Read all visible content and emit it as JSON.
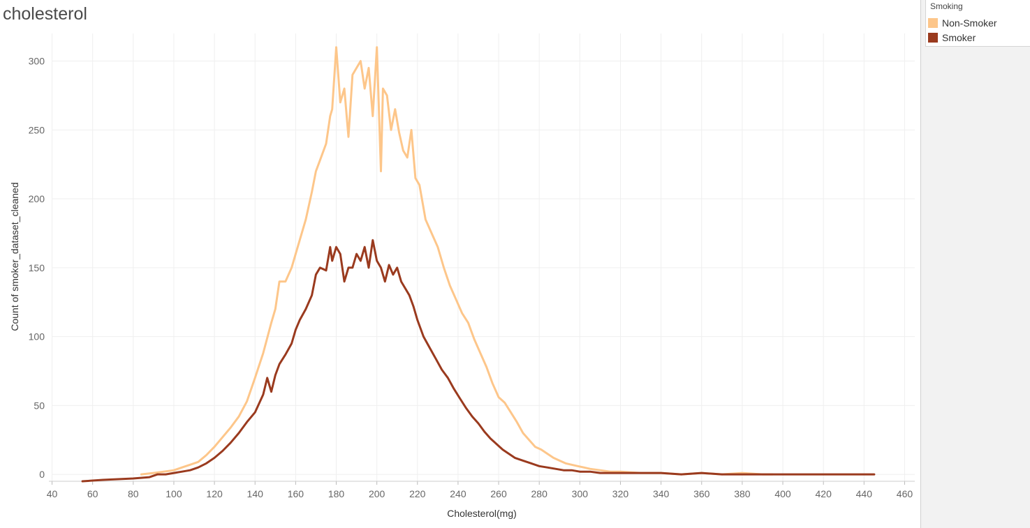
{
  "title": "cholesterol",
  "legend": {
    "title": "Smoking",
    "items": [
      {
        "label": "Non-Smoker",
        "color": "#fdc68a"
      },
      {
        "label": "Smoker",
        "color": "#9a3a1e"
      }
    ]
  },
  "chart_data": {
    "type": "line",
    "title": "cholesterol",
    "xlabel": "Cholesterol(mg)",
    "ylabel": "Count of smoker_dataset_cleaned",
    "xlim": [
      35,
      465
    ],
    "ylim": [
      -5,
      320
    ],
    "x_ticks": [
      40,
      60,
      80,
      100,
      120,
      140,
      160,
      180,
      200,
      220,
      240,
      260,
      280,
      300,
      320,
      340,
      360,
      380,
      400,
      420,
      440,
      460
    ],
    "y_ticks": [
      0,
      50,
      100,
      150,
      200,
      250,
      300
    ],
    "grid": true,
    "legend_position": "right",
    "series": [
      {
        "name": "Non-Smoker",
        "color": "#fdc68a",
        "points": [
          [
            84,
            0
          ],
          [
            90,
            1
          ],
          [
            95,
            2
          ],
          [
            100,
            3
          ],
          [
            104,
            5
          ],
          [
            108,
            7
          ],
          [
            112,
            9
          ],
          [
            116,
            14
          ],
          [
            120,
            20
          ],
          [
            124,
            27
          ],
          [
            128,
            34
          ],
          [
            132,
            42
          ],
          [
            136,
            53
          ],
          [
            140,
            70
          ],
          [
            144,
            88
          ],
          [
            148,
            110
          ],
          [
            150,
            120
          ],
          [
            152,
            140
          ],
          [
            155,
            140
          ],
          [
            158,
            150
          ],
          [
            160,
            160
          ],
          [
            162,
            170
          ],
          [
            165,
            185
          ],
          [
            168,
            205
          ],
          [
            170,
            220
          ],
          [
            172,
            228
          ],
          [
            175,
            240
          ],
          [
            177,
            260
          ],
          [
            178,
            265
          ],
          [
            180,
            310
          ],
          [
            182,
            270
          ],
          [
            184,
            280
          ],
          [
            186,
            245
          ],
          [
            188,
            290
          ],
          [
            190,
            295
          ],
          [
            192,
            300
          ],
          [
            194,
            280
          ],
          [
            196,
            295
          ],
          [
            198,
            260
          ],
          [
            200,
            310
          ],
          [
            202,
            220
          ],
          [
            203,
            280
          ],
          [
            205,
            275
          ],
          [
            207,
            250
          ],
          [
            209,
            265
          ],
          [
            211,
            248
          ],
          [
            213,
            235
          ],
          [
            215,
            230
          ],
          [
            217,
            250
          ],
          [
            219,
            215
          ],
          [
            221,
            210
          ],
          [
            224,
            185
          ],
          [
            227,
            175
          ],
          [
            230,
            165
          ],
          [
            233,
            150
          ],
          [
            236,
            137
          ],
          [
            239,
            127
          ],
          [
            242,
            117
          ],
          [
            245,
            110
          ],
          [
            248,
            98
          ],
          [
            251,
            88
          ],
          [
            254,
            78
          ],
          [
            257,
            66
          ],
          [
            260,
            56
          ],
          [
            263,
            52
          ],
          [
            266,
            45
          ],
          [
            269,
            38
          ],
          [
            272,
            30
          ],
          [
            275,
            25
          ],
          [
            278,
            20
          ],
          [
            281,
            18
          ],
          [
            284,
            15
          ],
          [
            287,
            12
          ],
          [
            290,
            10
          ],
          [
            293,
            8
          ],
          [
            296,
            7
          ],
          [
            299,
            6
          ],
          [
            302,
            5
          ],
          [
            305,
            4
          ],
          [
            310,
            3
          ],
          [
            315,
            2
          ],
          [
            320,
            2
          ],
          [
            330,
            1
          ],
          [
            340,
            1
          ],
          [
            350,
            0
          ],
          [
            360,
            1
          ],
          [
            370,
            0
          ],
          [
            380,
            1
          ],
          [
            390,
            0
          ],
          [
            395,
            0
          ]
        ]
      },
      {
        "name": "Smoker",
        "color": "#9a3a1e",
        "points": [
          [
            55,
            -5
          ],
          [
            65,
            -4
          ],
          [
            80,
            -3
          ],
          [
            88,
            -2
          ],
          [
            92,
            0
          ],
          [
            96,
            0
          ],
          [
            100,
            1
          ],
          [
            104,
            2
          ],
          [
            108,
            3
          ],
          [
            112,
            5
          ],
          [
            116,
            8
          ],
          [
            120,
            12
          ],
          [
            124,
            17
          ],
          [
            128,
            23
          ],
          [
            132,
            30
          ],
          [
            136,
            38
          ],
          [
            140,
            45
          ],
          [
            144,
            58
          ],
          [
            146,
            70
          ],
          [
            148,
            60
          ],
          [
            150,
            72
          ],
          [
            152,
            80
          ],
          [
            155,
            87
          ],
          [
            158,
            95
          ],
          [
            160,
            105
          ],
          [
            162,
            112
          ],
          [
            165,
            120
          ],
          [
            168,
            130
          ],
          [
            170,
            145
          ],
          [
            172,
            150
          ],
          [
            175,
            148
          ],
          [
            177,
            165
          ],
          [
            178,
            155
          ],
          [
            180,
            165
          ],
          [
            182,
            160
          ],
          [
            184,
            140
          ],
          [
            186,
            150
          ],
          [
            188,
            150
          ],
          [
            190,
            160
          ],
          [
            192,
            155
          ],
          [
            194,
            165
          ],
          [
            196,
            150
          ],
          [
            198,
            170
          ],
          [
            200,
            155
          ],
          [
            202,
            150
          ],
          [
            204,
            140
          ],
          [
            206,
            152
          ],
          [
            208,
            145
          ],
          [
            210,
            150
          ],
          [
            212,
            140
          ],
          [
            214,
            135
          ],
          [
            216,
            130
          ],
          [
            218,
            122
          ],
          [
            220,
            112
          ],
          [
            223,
            100
          ],
          [
            226,
            92
          ],
          [
            229,
            84
          ],
          [
            232,
            76
          ],
          [
            235,
            70
          ],
          [
            238,
            62
          ],
          [
            241,
            55
          ],
          [
            244,
            48
          ],
          [
            247,
            42
          ],
          [
            250,
            37
          ],
          [
            253,
            31
          ],
          [
            256,
            26
          ],
          [
            259,
            22
          ],
          [
            262,
            18
          ],
          [
            265,
            15
          ],
          [
            268,
            12
          ],
          [
            272,
            10
          ],
          [
            276,
            8
          ],
          [
            280,
            6
          ],
          [
            284,
            5
          ],
          [
            288,
            4
          ],
          [
            292,
            3
          ],
          [
            296,
            3
          ],
          [
            300,
            2
          ],
          [
            305,
            2
          ],
          [
            310,
            1
          ],
          [
            320,
            1
          ],
          [
            330,
            1
          ],
          [
            340,
            1
          ],
          [
            350,
            0
          ],
          [
            360,
            1
          ],
          [
            370,
            0
          ],
          [
            380,
            0
          ],
          [
            390,
            0
          ],
          [
            400,
            0
          ],
          [
            420,
            0
          ],
          [
            440,
            0
          ],
          [
            445,
            0
          ]
        ]
      }
    ]
  }
}
